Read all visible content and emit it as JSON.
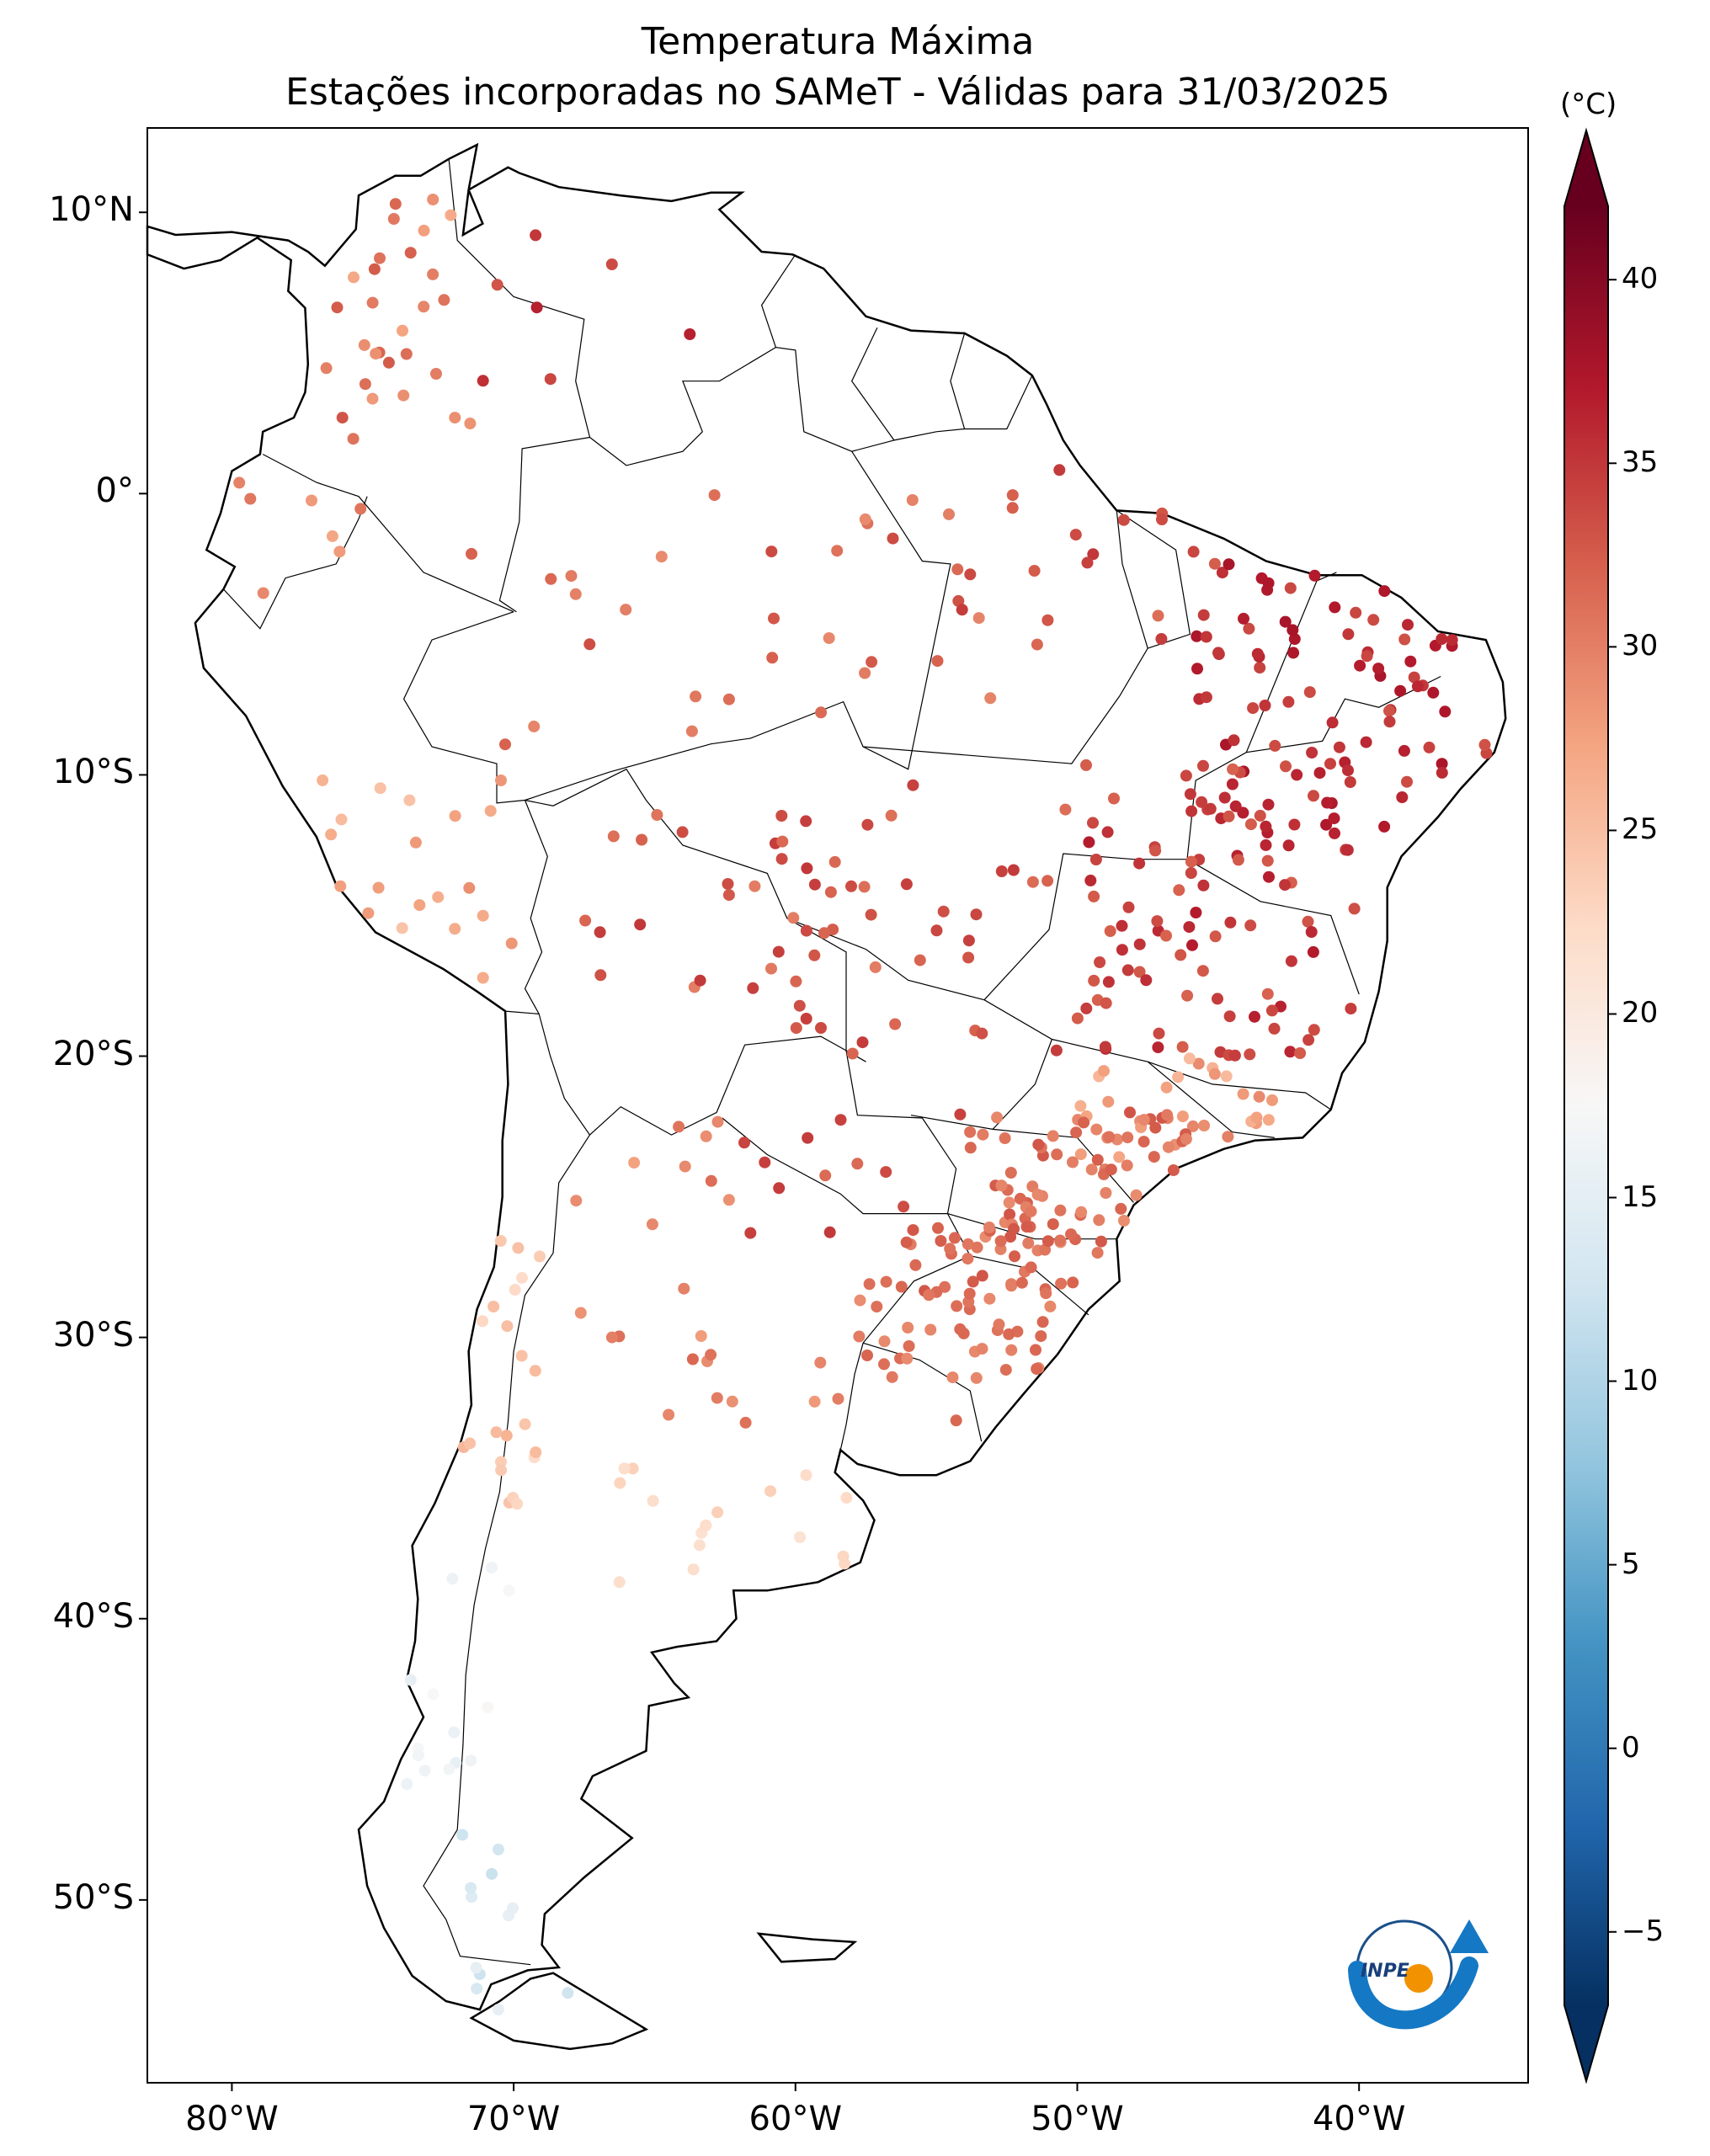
{
  "title_line1": "Temperatura Máxima",
  "title_line2": "Estações incorporadas no SAMeT - Válidas para 31/03/2025",
  "logo_text": "INPE",
  "lat_ticks": [
    {
      "value": 10,
      "label": "10°N"
    },
    {
      "value": 0,
      "label": "0°"
    },
    {
      "value": -10,
      "label": "10°S"
    },
    {
      "value": -20,
      "label": "20°S"
    },
    {
      "value": -30,
      "label": "30°S"
    },
    {
      "value": -40,
      "label": "40°S"
    },
    {
      "value": -50,
      "label": "50°S"
    }
  ],
  "lon_ticks": [
    {
      "value": -80,
      "label": "80°W"
    },
    {
      "value": -70,
      "label": "70°W"
    },
    {
      "value": -60,
      "label": "60°W"
    },
    {
      "value": -50,
      "label": "50°W"
    },
    {
      "value": -40,
      "label": "40°W"
    }
  ],
  "map_extent": {
    "lon": [
      -83,
      -34
    ],
    "lat": [
      -56.5,
      13
    ]
  },
  "colorbar": {
    "unit": "(°C)",
    "range": [
      -7,
      42
    ],
    "ticks": [
      -5,
      0,
      5,
      10,
      15,
      20,
      25,
      30,
      35,
      40
    ],
    "colors": [
      "#053061",
      "#2166ac",
      "#4393c3",
      "#92c5de",
      "#d1e5f0",
      "#f7f7f7",
      "#fddbc7",
      "#f4a582",
      "#d6604d",
      "#b2182b",
      "#67001f"
    ]
  },
  "regions": [
    {
      "lon": [
        -77,
        -71
      ],
      "lat": [
        2,
        11
      ],
      "temp": [
        26,
        33
      ],
      "n": 28
    },
    {
      "lon": [
        -72,
        -60
      ],
      "lat": [
        4,
        11
      ],
      "temp": [
        33,
        37
      ],
      "n": 7
    },
    {
      "lon": [
        -80,
        -75
      ],
      "lat": [
        -5,
        2
      ],
      "temp": [
        27,
        31
      ],
      "n": 8
    },
    {
      "lon": [
        -72,
        -52
      ],
      "lat": [
        -9,
        0
      ],
      "temp": [
        29,
        34
      ],
      "n": 30
    },
    {
      "lon": [
        -55,
        -45
      ],
      "lat": [
        -6,
        2
      ],
      "temp": [
        30,
        35
      ],
      "n": 18
    },
    {
      "lon": [
        -46,
        -35
      ],
      "lat": [
        -12,
        -2
      ],
      "temp": [
        33,
        38
      ],
      "n": 85
    },
    {
      "lon": [
        -50,
        -40
      ],
      "lat": [
        -20,
        -9
      ],
      "temp": [
        32,
        37
      ],
      "n": 100
    },
    {
      "lon": [
        -60,
        -50
      ],
      "lat": [
        -20,
        -10
      ],
      "temp": [
        31,
        35
      ],
      "n": 30
    },
    {
      "lon": [
        -68,
        -57
      ],
      "lat": [
        -19,
        -11
      ],
      "temp": [
        30,
        35
      ],
      "n": 30
    },
    {
      "lon": [
        -78,
        -70
      ],
      "lat": [
        -18,
        -10
      ],
      "temp": [
        24,
        29
      ],
      "n": 20
    },
    {
      "lon": [
        -50,
        -43
      ],
      "lat": [
        -24,
        -20
      ],
      "temp": [
        25,
        30
      ],
      "n": 30
    },
    {
      "lon": [
        -54,
        -46
      ],
      "lat": [
        -27,
        -22
      ],
      "temp": [
        29,
        33
      ],
      "n": 75
    },
    {
      "lon": [
        -56,
        -50
      ],
      "lat": [
        -29,
        -26
      ],
      "temp": [
        30,
        33
      ],
      "n": 30
    },
    {
      "lon": [
        -58,
        -50
      ],
      "lat": [
        -33,
        -28
      ],
      "temp": [
        29,
        32
      ],
      "n": 40
    },
    {
      "lon": [
        -62,
        -54
      ],
      "lat": [
        -27,
        -22
      ],
      "temp": [
        31,
        35
      ],
      "n": 15
    },
    {
      "lon": [
        -68,
        -62
      ],
      "lat": [
        -30,
        -22
      ],
      "temp": [
        27,
        32
      ],
      "n": 14
    },
    {
      "lon": [
        -65,
        -58
      ],
      "lat": [
        -34,
        -30
      ],
      "temp": [
        28,
        32
      ],
      "n": 10
    },
    {
      "lon": [
        -72,
        -69
      ],
      "lat": [
        -36,
        -26
      ],
      "temp": [
        22,
        26
      ],
      "n": 22
    },
    {
      "lon": [
        -67,
        -57
      ],
      "lat": [
        -40,
        -34
      ],
      "temp": [
        21,
        24
      ],
      "n": 16
    },
    {
      "lon": [
        -74,
        -70
      ],
      "lat": [
        -46,
        -38
      ],
      "temp": [
        15,
        18
      ],
      "n": 14
    },
    {
      "lon": [
        -72,
        -66
      ],
      "lat": [
        -55,
        -47
      ],
      "temp": [
        12,
        16
      ],
      "n": 12
    }
  ]
}
